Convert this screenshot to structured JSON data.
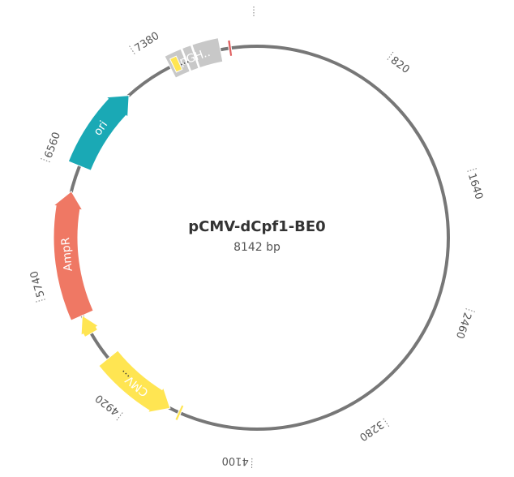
{
  "title": "pCMV-dCpf1-BE0",
  "size": "8142 bp",
  "ticks": [
    "820",
    "1640",
    "2460",
    "3280",
    "4100",
    "4920",
    "5740",
    "6560",
    "7380"
  ],
  "features": [
    {
      "label": "ori",
      "color": "#1aa9b5"
    },
    {
      "label": "AmpR",
      "color": "#ef7864"
    },
    {
      "label": "CMV",
      "color": "#ffe552"
    },
    {
      "label": "pGH..",
      "color": "#c8c8c8"
    }
  ],
  "more_labels": [
    "...",
    "..."
  ]
}
